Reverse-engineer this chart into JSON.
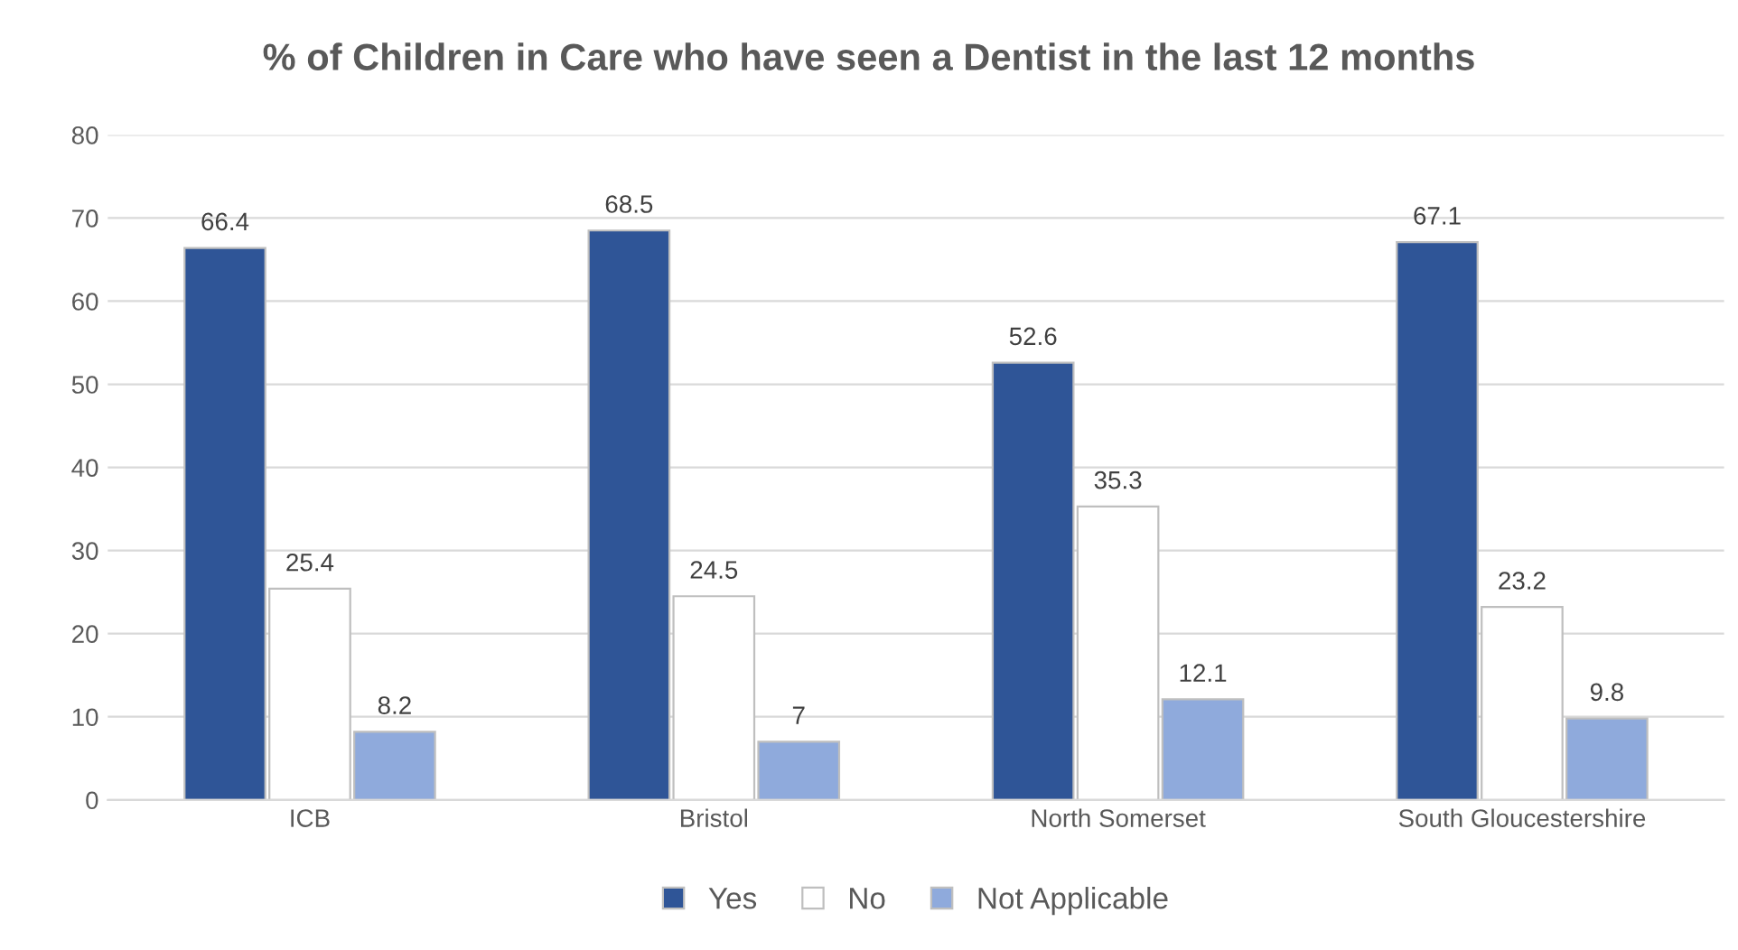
{
  "chart_data": {
    "type": "bar",
    "title": "% of Children in Care who have seen a Dentist in the last 12 months",
    "categories": [
      "ICB",
      "Bristol",
      "North Somerset",
      "South Gloucestershire"
    ],
    "series": [
      {
        "name": "Yes",
        "color": "#2f5597",
        "values": [
          66.4,
          68.5,
          52.6,
          67.1
        ]
      },
      {
        "name": "No",
        "color": "#ffffff",
        "values": [
          25.4,
          24.5,
          35.3,
          23.2
        ]
      },
      {
        "name": "Not Applicable",
        "color": "#8faadc",
        "values": [
          8.2,
          7,
          12.1,
          9.8
        ]
      }
    ],
    "ylim": [
      0,
      80
    ],
    "yticks": [
      0,
      10,
      20,
      30,
      40,
      50,
      60,
      70,
      80
    ],
    "grid": "y",
    "legend": "bottom",
    "data_labels": true
  }
}
